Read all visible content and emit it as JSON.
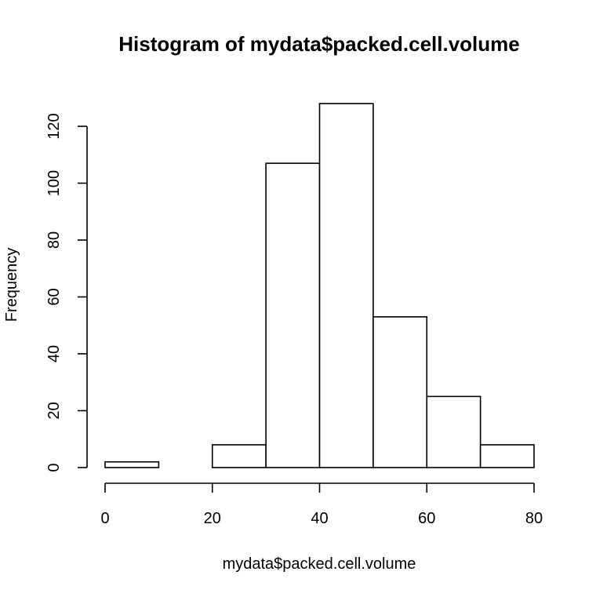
{
  "chart_data": {
    "type": "bar",
    "title": "Histogram of mydata$packed.cell.volume",
    "xlabel": "mydata$packed.cell.volume",
    "ylabel": "Frequency",
    "bins": [
      {
        "start": 0,
        "end": 10,
        "count": 2
      },
      {
        "start": 10,
        "end": 20,
        "count": 0
      },
      {
        "start": 20,
        "end": 30,
        "count": 8
      },
      {
        "start": 30,
        "end": 40,
        "count": 107
      },
      {
        "start": 40,
        "end": 50,
        "count": 128
      },
      {
        "start": 50,
        "end": 60,
        "count": 53
      },
      {
        "start": 60,
        "end": 70,
        "count": 25
      },
      {
        "start": 70,
        "end": 80,
        "count": 8
      }
    ],
    "xlim": [
      0,
      80
    ],
    "ylim": [
      0,
      128
    ],
    "x_ticks": [
      0,
      20,
      40,
      60,
      80
    ],
    "y_ticks": [
      0,
      20,
      40,
      60,
      80,
      100,
      120
    ],
    "grid": false,
    "colors": {
      "bar_fill": "#ffffff",
      "bar_stroke": "#000000"
    }
  }
}
